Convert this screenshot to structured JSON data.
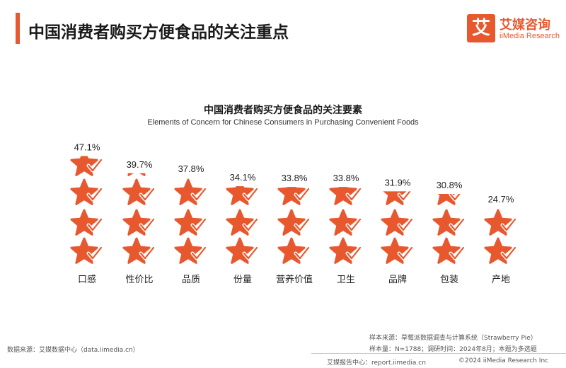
{
  "header": {
    "title": "中国消费者购买方便食品的关注重点"
  },
  "logo": {
    "mark": "艾",
    "name_cn": "艾媒咨询",
    "name_en": "iiMedia Research"
  },
  "chart_data": {
    "type": "pictograph",
    "title": "中国消费者购买方便食品的关注要素",
    "subtitle": "Elements of Concern for Chinese Consumers in Purchasing Convenient Foods",
    "categories": [
      "口感",
      "性价比",
      "品质",
      "份量",
      "营养价值",
      "卫生",
      "品牌",
      "包装",
      "产地"
    ],
    "values": [
      47.1,
      39.7,
      37.8,
      34.1,
      33.8,
      33.8,
      31.9,
      30.8,
      24.7
    ],
    "value_labels": [
      "47.1%",
      "39.7%",
      "37.8%",
      "34.1%",
      "33.8%",
      "33.8%",
      "31.9%",
      "30.8%",
      "24.7%"
    ],
    "unit": "%",
    "icon": "star-check-icon",
    "icon_color": "#e8582f",
    "check_color": "#ffffff"
  },
  "footer": {
    "source": "数据来源：艾媒数据中心（data.iimedia.cn）",
    "sample_source": "样本来源：草莓派数据调查与计算系统（Strawberry Pie）",
    "sample_info": "样本量：N=1788；调研时间：2024年8月；本题为多选题",
    "report_center": "艾媒报告中心：report.iimedia.cn",
    "copyright": "©2024  iiMedia Research Inc"
  }
}
